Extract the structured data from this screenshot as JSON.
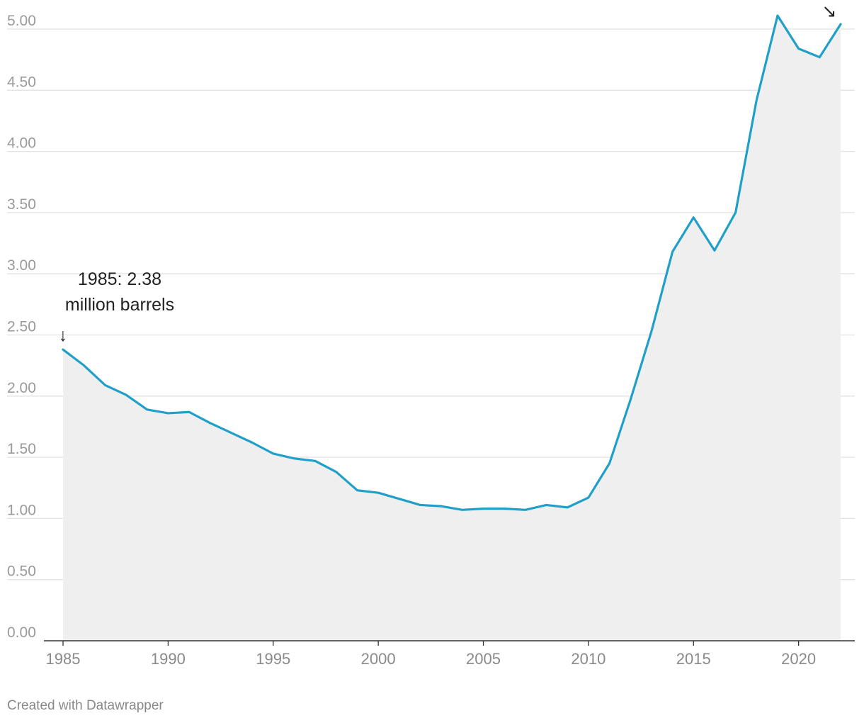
{
  "chart_data": {
    "type": "area",
    "title": "",
    "xlabel": "",
    "ylabel": "",
    "x": [
      1985,
      1986,
      1987,
      1988,
      1989,
      1990,
      1991,
      1992,
      1993,
      1994,
      1995,
      1996,
      1997,
      1998,
      1999,
      2000,
      2001,
      2002,
      2003,
      2004,
      2005,
      2006,
      2007,
      2008,
      2009,
      2010,
      2011,
      2012,
      2013,
      2014,
      2015,
      2016,
      2017,
      2018,
      2019,
      2020,
      2021,
      2022
    ],
    "series": [
      {
        "name": "Million barrels",
        "values": [
          2.38,
          2.25,
          2.09,
          2.01,
          1.89,
          1.86,
          1.87,
          1.78,
          1.7,
          1.62,
          1.53,
          1.49,
          1.47,
          1.38,
          1.23,
          1.21,
          1.16,
          1.11,
          1.1,
          1.07,
          1.08,
          1.08,
          1.07,
          1.11,
          1.09,
          1.17,
          1.45,
          1.97,
          2.53,
          3.18,
          3.46,
          3.19,
          3.5,
          4.42,
          5.11,
          4.84,
          4.77,
          5.04
        ]
      }
    ],
    "xlim": [
      1985,
      2022
    ],
    "ylim": [
      0,
      5
    ],
    "y_ticks": [
      "0.00",
      "0.50",
      "1.00",
      "1.50",
      "2.00",
      "2.50",
      "3.00",
      "3.50",
      "4.00",
      "4.50",
      "5.00"
    ],
    "x_ticks": [
      "1985",
      "1990",
      "1995",
      "2000",
      "2005",
      "2010",
      "2015",
      "2020"
    ],
    "grid": true,
    "line_color": "#20a0c8",
    "area_color": "#efefef",
    "annotations": [
      {
        "year": 1985,
        "value": 2.38,
        "lines": [
          "1985: 2.38",
          "million barrels"
        ],
        "arrow": "↓"
      },
      {
        "year": 2022,
        "value": 5.04,
        "lines": [],
        "arrow": "↘"
      }
    ]
  },
  "credit": "Created with Datawrapper"
}
